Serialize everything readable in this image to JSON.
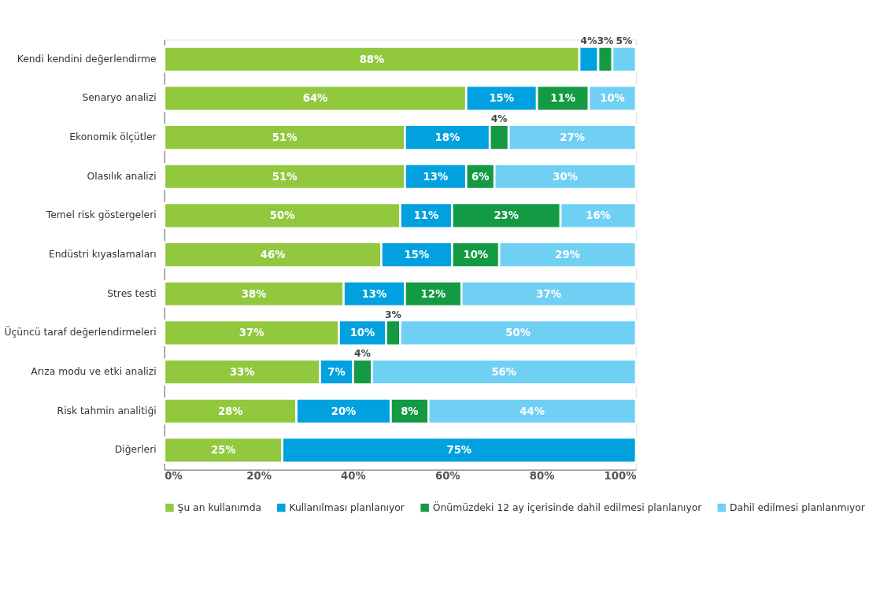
{
  "chart_data": {
    "type": "bar",
    "orientation": "horizontal",
    "stacked": true,
    "categories": [
      "Kendi kendini değerlendirme",
      "Senaryo analizi",
      "Ekonomik ölçütler",
      "Olasılık analizi",
      "Temel risk göstergeleri",
      "Endüstri kıyaslamaları",
      "Stres testi",
      "Üçüncü taraf değerlendirmeleri",
      "Arıza modu ve etki analizi",
      "Risk tahmin analitiği",
      "Diğerleri"
    ],
    "series": [
      {
        "name": "Şu an kullanımda",
        "color": "#92c83e",
        "values": [
          88,
          64,
          51,
          51,
          50,
          46,
          38,
          37,
          33,
          28,
          25
        ],
        "value_labels": [
          "88%",
          "64%",
          "51%",
          "51%",
          "50%",
          "46%",
          "38%",
          "37%",
          "33%",
          "28%",
          "25%"
        ]
      },
      {
        "name": "Kullanılması planlanıyor",
        "color": "#00a1de",
        "values": [
          4,
          15,
          18,
          13,
          11,
          15,
          13,
          10,
          7,
          20,
          75
        ],
        "value_labels": [
          "4%",
          "15%",
          "18%",
          "13%",
          "11%",
          "15%",
          "13%",
          "10%",
          "7%",
          "20%",
          "75%"
        ]
      },
      {
        "name": "Önümüzdeki 12 ay içerisinde dahil edilmesi planlanıyor",
        "color": "#139a43",
        "values": [
          3,
          11,
          4,
          6,
          23,
          10,
          12,
          3,
          4,
          8,
          null
        ],
        "value_labels": [
          "3%",
          "11%",
          "4%",
          "6%",
          "23%",
          "10%",
          "12%",
          "3%",
          "4%",
          "8%",
          null
        ]
      },
      {
        "name": "Dahil edilmesi planlanmıyor",
        "color": "#6fd0f4",
        "values": [
          5,
          10,
          27,
          30,
          16,
          29,
          37,
          50,
          56,
          44,
          null
        ],
        "value_labels": [
          "5%",
          "10%",
          "27%",
          "30%",
          "16%",
          "29%",
          "37%",
          "50%",
          "56%",
          "44%",
          null
        ]
      }
    ],
    "xlim": [
      0,
      100
    ],
    "xticks": [
      {
        "value": 0,
        "label": "0%"
      },
      {
        "value": 20,
        "label": "20%"
      },
      {
        "value": 40,
        "label": "40%"
      },
      {
        "value": 60,
        "label": "60%"
      },
      {
        "value": 80,
        "label": "80%"
      },
      {
        "value": 100,
        "label": "100%"
      }
    ],
    "grid": false,
    "legend": "bottom"
  }
}
